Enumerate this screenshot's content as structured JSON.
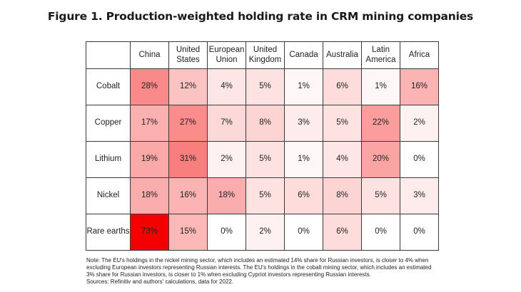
{
  "title": "Figure 1. Production-weighted holding rate in CRM mining companies",
  "chart_data": {
    "type": "heatmap",
    "title": "Figure 1. Production-weighted holding rate in CRM mining companies",
    "columns": [
      [
        "China"
      ],
      [
        "United",
        "States"
      ],
      [
        "European",
        "Union"
      ],
      [
        "United",
        "Kingdom"
      ],
      [
        "Canada"
      ],
      [
        "Australia"
      ],
      [
        "Latin",
        "America"
      ],
      [
        "Africa"
      ]
    ],
    "rows": [
      "Cobalt",
      "Copper",
      "Lithium",
      "Nickel",
      "Rare earths"
    ],
    "values": [
      [
        28,
        12,
        4,
        5,
        1,
        6,
        1,
        16
      ],
      [
        17,
        27,
        7,
        8,
        3,
        5,
        22,
        2
      ],
      [
        19,
        31,
        2,
        5,
        1,
        4,
        20,
        0
      ],
      [
        18,
        16,
        18,
        5,
        6,
        8,
        5,
        3
      ],
      [
        73,
        15,
        0,
        2,
        0,
        6,
        0,
        0
      ]
    ],
    "unit": "%",
    "color_low": "#ffffff",
    "color_high": "#f40000"
  },
  "note_lines": [
    "Note: The EU's holdings in the nickel mining sector, which includes an estimated 14% share for Russian investors, is closer to 4% when",
    "excluding European investors representing Russian interests. The EU's holdings in the cobalt mining sector, which includes an estimated",
    "3% share for Russian investors, is closer to 1% when excluding Cypriot investors representing Russian interests.",
    "Sources: Refinitiv and authors' calculations, data for 2022."
  ]
}
